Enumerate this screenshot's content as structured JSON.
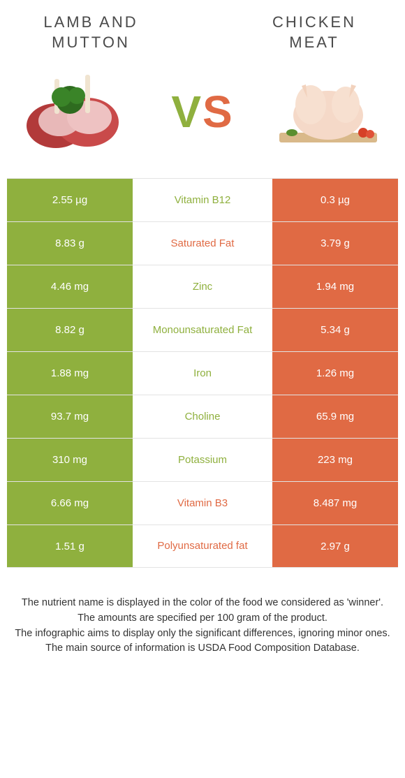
{
  "colors": {
    "green": "#8fb03e",
    "orange": "#e06a44",
    "text": "#333333",
    "border": "#e3e3e3",
    "white": "#ffffff"
  },
  "typography": {
    "title_fontsize": 22,
    "title_letterspacing": 3,
    "vs_fontsize": 64,
    "cell_fontsize": 15,
    "footer_fontsize": 14.5
  },
  "header": {
    "left_title_line1": "LAMB AND",
    "left_title_line2": "MUTTON",
    "right_title_line1": "CHICKEN",
    "right_title_line2": "MEAT",
    "vs_v": "V",
    "vs_s": "S"
  },
  "images": {
    "left_alt": "lamb-chops",
    "right_alt": "raw-chicken"
  },
  "rows": [
    {
      "left": "2.55 µg",
      "label": "Vitamin B12",
      "right": "0.3 µg",
      "winner": "left"
    },
    {
      "left": "8.83 g",
      "label": "Saturated Fat",
      "right": "3.79 g",
      "winner": "right"
    },
    {
      "left": "4.46 mg",
      "label": "Zinc",
      "right": "1.94 mg",
      "winner": "left"
    },
    {
      "left": "8.82 g",
      "label": "Monounsaturated Fat",
      "right": "5.34 g",
      "winner": "left"
    },
    {
      "left": "1.88 mg",
      "label": "Iron",
      "right": "1.26 mg",
      "winner": "left"
    },
    {
      "left": "93.7 mg",
      "label": "Choline",
      "right": "65.9 mg",
      "winner": "left"
    },
    {
      "left": "310 mg",
      "label": "Potassium",
      "right": "223 mg",
      "winner": "left"
    },
    {
      "left": "6.66 mg",
      "label": "Vitamin B3",
      "right": "8.487 mg",
      "winner": "right"
    },
    {
      "left": "1.51 g",
      "label": "Polyunsaturated fat",
      "right": "2.97 g",
      "winner": "right"
    }
  ],
  "footer": {
    "line1": "The nutrient name is displayed in the color of the food we considered as 'winner'.",
    "line2": "The amounts are specified per 100 gram of the product.",
    "line3": "The infographic aims to display only the significant differences, ignoring minor ones.",
    "line4": "The main source of information is USDA Food Composition Database."
  }
}
